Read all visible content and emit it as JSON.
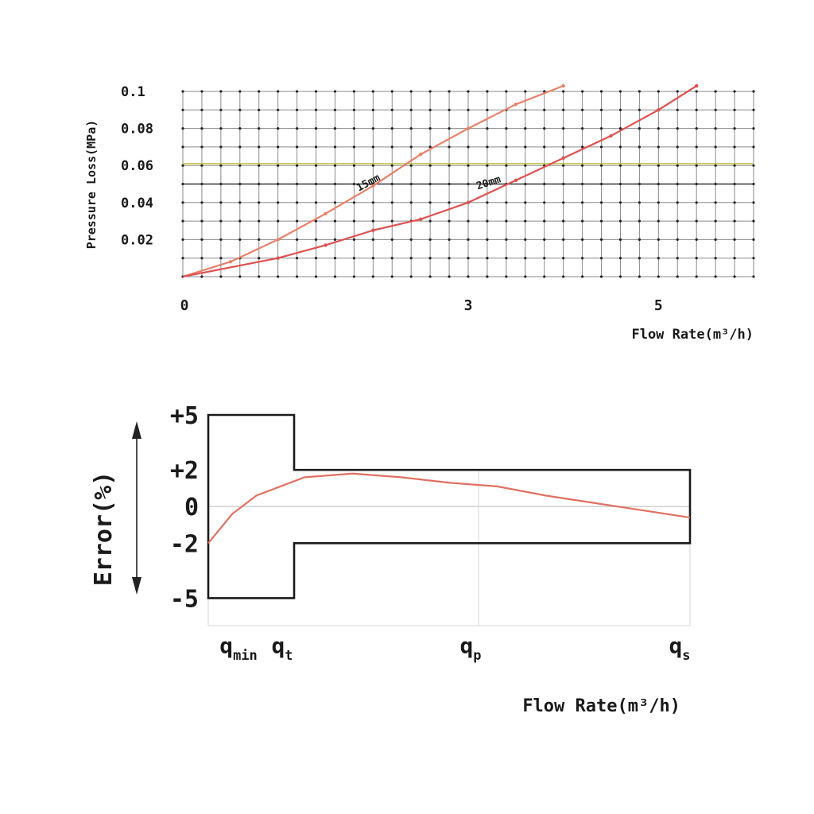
{
  "chart_data": [
    {
      "type": "line",
      "title": "",
      "xlabel": "Flow Rate(m³/h)",
      "ylabel": "Pressure Loss(MPa)",
      "xlim": [
        0,
        6
      ],
      "ylim": [
        0,
        0.1
      ],
      "x_ticks": [
        "0",
        "3",
        "5"
      ],
      "y_ticks": [
        "0.02",
        "0.04",
        "0.06",
        "0.08",
        "0.1"
      ],
      "grid": true,
      "series": [
        {
          "name": "15mm",
          "x": [
            0,
            0.5,
            1.0,
            1.5,
            2.0,
            2.5,
            3.0,
            3.5,
            4.0
          ],
          "y": [
            0,
            0.008,
            0.02,
            0.034,
            0.049,
            0.066,
            0.08,
            0.093,
            0.103
          ],
          "color": "#e8806a"
        },
        {
          "name": "20mm",
          "x": [
            0,
            1.0,
            1.5,
            2.0,
            2.5,
            3.0,
            3.5,
            4.0,
            4.5,
            5.0,
            5.4
          ],
          "y": [
            0,
            0.01,
            0.017,
            0.025,
            0.031,
            0.04,
            0.052,
            0.064,
            0.076,
            0.09,
            0.103
          ],
          "color": "#e05050"
        }
      ],
      "reference_lines": [
        {
          "y": 0.061,
          "color": "#c0c048"
        },
        {
          "y": 0.05,
          "color": "#333333"
        }
      ]
    },
    {
      "type": "line",
      "title": "",
      "xlabel": "Flow Rate(m³/h)",
      "ylabel": "Error(%)",
      "ylim": [
        -6.5,
        5
      ],
      "x_ticks": [
        {
          "main": "q",
          "sub": "min"
        },
        {
          "main": "q",
          "sub": "t"
        },
        {
          "main": "q",
          "sub": "p"
        },
        {
          "main": "q",
          "sub": "s"
        }
      ],
      "y_ticks": [
        "+5",
        "+2",
        "0",
        "-2",
        "-5"
      ],
      "limits": {
        "low_range": {
          "upper": 5,
          "lower": -5
        },
        "high_range": {
          "upper": 2,
          "lower": -2
        }
      },
      "series": [
        {
          "x": [
            0,
            0.05,
            0.1,
            0.2,
            0.3,
            0.4,
            0.5,
            0.6,
            0.7,
            0.8,
            0.9,
            1.0
          ],
          "y": [
            -2.0,
            -0.4,
            0.6,
            1.6,
            1.8,
            1.6,
            1.3,
            1.1,
            0.6,
            0.2,
            -0.2,
            -0.6
          ],
          "color": "#e07060"
        }
      ]
    }
  ]
}
